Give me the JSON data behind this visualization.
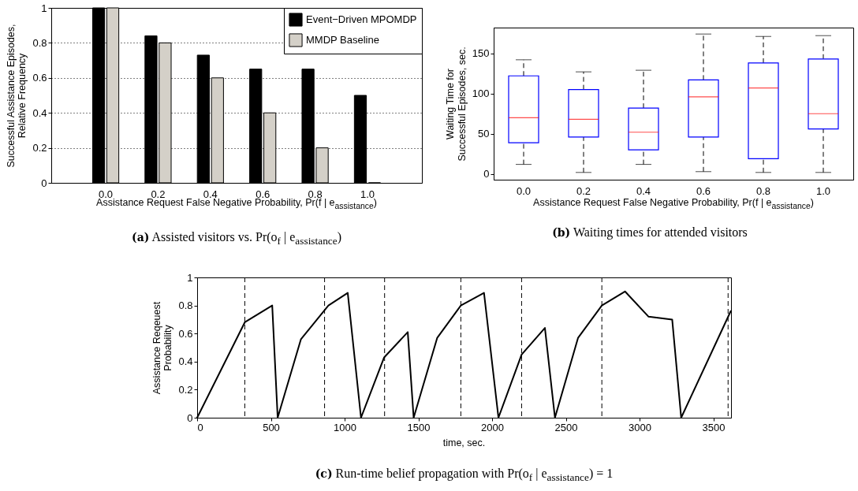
{
  "chart_data": [
    {
      "type": "bar",
      "categories": [
        "0.0",
        "0.2",
        "0.4",
        "0.6",
        "0.8",
        "1.0"
      ],
      "series": [
        {
          "name": "Event−Driven MPOMDP",
          "color": "#000000",
          "values": [
            1,
            0.84,
            0.73,
            0.65,
            0.65,
            0.5
          ]
        },
        {
          "name": "MMDP Baseline",
          "color": "#d4d0c8",
          "values": [
            1,
            0.8,
            0.6,
            0.4,
            0.2,
            0
          ]
        }
      ],
      "ylim": [
        0,
        1
      ],
      "yticks": [
        0,
        0.2,
        0.4,
        0.6,
        0.8,
        1
      ],
      "grid": "y",
      "legend": "top right",
      "xlabel": "Assistance Request False Negative Probability, Pr(f | e$_{assistance}$)",
      "ylabel": "Successful Assistance Episodes,\nRelative Frequency",
      "annotations": [
        "(a) Assisted visitors vs. Pr(o$_{f}$ | e$_{assistance}$)"
      ]
    },
    {
      "type": "box",
      "categories": [
        "0.0",
        "0.2",
        "0.4",
        "0.6",
        "0.8",
        "1.0"
      ],
      "series": [
        {
          "color": "#0000ff",
          "boxes": [
            {
              "low": 12,
              "q1": 39,
              "median": 70,
              "q3": 122,
              "high": 142
            },
            {
              "low": 2,
              "q1": 46,
              "median": 68,
              "q3": 105,
              "high": 127
            },
            {
              "low": 12,
              "q1": 30,
              "median": 52,
              "q3": 82,
              "high": 129
            },
            {
              "low": 3,
              "q1": 46,
              "median": 96,
              "q3": 117,
              "high": 174
            },
            {
              "low": 2,
              "q1": 19,
              "median": 107,
              "q3": 138,
              "high": 171
            },
            {
              "low": 2,
              "q1": 56,
              "median": 75,
              "q3": 143,
              "high": 172
            }
          ]
        }
      ],
      "ylim": [
        -7,
        182
      ],
      "yticks": [
        0,
        50,
        100,
        150
      ],
      "xlabel": "Assistance Request False Negative Probability, Pr(f | e$_{assistance}$)",
      "ylabel": "Waiting Time for\nSuccessful Episodes, sec.",
      "annotations": [
        "(b) Waiting times for attended visitors"
      ]
    },
    {
      "type": "line",
      "x": [
        0,
        323,
        509,
        546,
        704,
        890,
        1021,
        1111,
        1268,
        1428,
        1468,
        1628,
        1788,
        1945,
        2043,
        2200,
        2358,
        2426,
        2583,
        2744,
        2901,
        3061,
        3221,
        3282,
        3618
      ],
      "series": [
        {
          "color": "#000000",
          "values": [
            0,
            0.68,
            0.8,
            0,
            0.56,
            0.8,
            0.89,
            0,
            0.43,
            0.61,
            0,
            0.57,
            0.8,
            0.89,
            0,
            0.45,
            0.64,
            0,
            0.57,
            0.8,
            0.9,
            0.72,
            0.7,
            0,
            0.76
          ]
        }
      ],
      "xlim": [
        0,
        3620
      ],
      "xticks": [
        0,
        500,
        1000,
        1500,
        2000,
        2500,
        3000,
        3500
      ],
      "ylim": [
        0,
        1
      ],
      "yticks": [
        0,
        0.2,
        0.4,
        0.6,
        0.8,
        1
      ],
      "ref_lines": [
        {
          "axis": "x",
          "value": 323,
          "color": "#000000",
          "line_style": "dashed"
        },
        {
          "axis": "x",
          "value": 864,
          "color": "#000000",
          "line_style": "dashed"
        },
        {
          "axis": "x",
          "value": 1271,
          "color": "#000000",
          "line_style": "dashed"
        },
        {
          "axis": "x",
          "value": 1788,
          "color": "#000000",
          "line_style": "dashed"
        },
        {
          "axis": "x",
          "value": 2200,
          "color": "#000000",
          "line_style": "dashed"
        },
        {
          "axis": "x",
          "value": 2744,
          "color": "#000000",
          "line_style": "dashed"
        },
        {
          "axis": "x",
          "value": 3600,
          "color": "#000000",
          "line_style": "dashed"
        }
      ],
      "line_style": "solid",
      "xlabel": "time, sec.",
      "ylabel": "Assistance Reqeuest\nProbability",
      "annotations": [
        "(c) Run-time belief propagation with Pr(o$_{f}$ | e$_{assistance}$) = 1"
      ]
    }
  ]
}
